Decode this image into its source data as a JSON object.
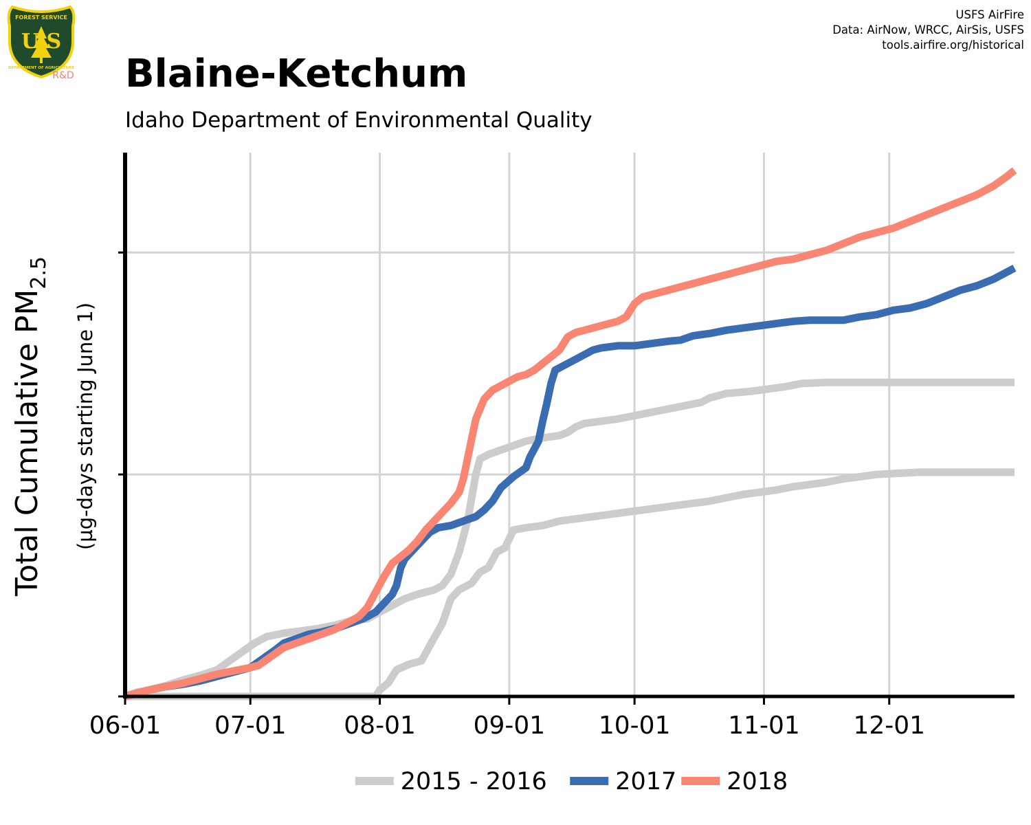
{
  "header": {
    "title": "Blaine-Ketchum",
    "subtitle": "Idaho Department of Environmental Quality",
    "credits": [
      "USFS AirFire",
      "Data: AirNow, WRCC, AirSis, USFS",
      "tools.airfire.org/historical"
    ],
    "logo": {
      "top_text": "FOREST SERVICE",
      "letters": "U S",
      "bottom_text": "DEPARTMENT OF AGRICULTURE",
      "badge": "R&D",
      "colors": {
        "shield": "#1f4a2c",
        "rim": "#f2d20c",
        "badge": "#f08070"
      }
    }
  },
  "chart_data": {
    "type": "line",
    "title": "Blaine-Ketchum",
    "subtitle": "Idaho Department of Environmental Quality",
    "ylabel": "Total Cumulative PM",
    "ylabel_subscript": "2.5",
    "ylabel_secondary": "(µg-days starting June 1)",
    "x_axis": {
      "type": "date",
      "range": [
        "06-01",
        "12-31"
      ],
      "ticks": [
        {
          "label": "06-01",
          "day": 0
        },
        {
          "label": "07-01",
          "day": 30
        },
        {
          "label": "08-01",
          "day": 61
        },
        {
          "label": "09-01",
          "day": 92
        },
        {
          "label": "10-01",
          "day": 122
        },
        {
          "label": "11-01",
          "day": 153
        },
        {
          "label": "12-01",
          "day": 183
        }
      ]
    },
    "y_axis": {
      "range": [
        0,
        2450
      ],
      "gridlines": [
        1000,
        2000
      ],
      "tick_labels_shown": false
    },
    "grid": true,
    "legend": {
      "placement": "bottom",
      "entries": [
        {
          "label": "2015 - 2016",
          "color": "#cccccc"
        },
        {
          "label": "2017",
          "color": "#3a6cb2"
        },
        {
          "label": "2018",
          "color": "#f98573"
        }
      ]
    },
    "series": [
      {
        "name": "2015 - 2016",
        "year": "2015",
        "color": "#cccccc",
        "points": [
          [
            0,
            0
          ],
          [
            30,
            0
          ],
          [
            60,
            0
          ],
          [
            61,
            30
          ],
          [
            63,
            60
          ],
          [
            65,
            120
          ],
          [
            68,
            145
          ],
          [
            71,
            160
          ],
          [
            73,
            230
          ],
          [
            76,
            330
          ],
          [
            78,
            440
          ],
          [
            80,
            480
          ],
          [
            83,
            510
          ],
          [
            85,
            560
          ],
          [
            87,
            580
          ],
          [
            89,
            650
          ],
          [
            91,
            670
          ],
          [
            93,
            750
          ],
          [
            96,
            760
          ],
          [
            100,
            770
          ],
          [
            104,
            790
          ],
          [
            108,
            800
          ],
          [
            112,
            810
          ],
          [
            116,
            820
          ],
          [
            120,
            830
          ],
          [
            124,
            840
          ],
          [
            128,
            850
          ],
          [
            132,
            860
          ],
          [
            136,
            870
          ],
          [
            140,
            880
          ],
          [
            144,
            895
          ],
          [
            148,
            910
          ],
          [
            152,
            920
          ],
          [
            156,
            930
          ],
          [
            160,
            945
          ],
          [
            164,
            955
          ],
          [
            168,
            965
          ],
          [
            172,
            980
          ],
          [
            176,
            990
          ],
          [
            180,
            1000
          ],
          [
            190,
            1010
          ],
          [
            213,
            1010
          ]
        ]
      },
      {
        "name": "2015 - 2016",
        "year": "2016",
        "color": "#cccccc",
        "points": [
          [
            0,
            0
          ],
          [
            3,
            20
          ],
          [
            6,
            30
          ],
          [
            10,
            50
          ],
          [
            14,
            75
          ],
          [
            18,
            95
          ],
          [
            22,
            120
          ],
          [
            25,
            160
          ],
          [
            28,
            200
          ],
          [
            31,
            240
          ],
          [
            34,
            270
          ],
          [
            38,
            285
          ],
          [
            42,
            295
          ],
          [
            46,
            305
          ],
          [
            50,
            320
          ],
          [
            54,
            340
          ],
          [
            58,
            350
          ],
          [
            61,
            380
          ],
          [
            64,
            410
          ],
          [
            67,
            440
          ],
          [
            70,
            460
          ],
          [
            74,
            480
          ],
          [
            76,
            500
          ],
          [
            78,
            550
          ],
          [
            80,
            650
          ],
          [
            82,
            790
          ],
          [
            84,
            1000
          ],
          [
            85,
            1070
          ],
          [
            87,
            1090
          ],
          [
            90,
            1110
          ],
          [
            93,
            1130
          ],
          [
            96,
            1150
          ],
          [
            100,
            1165
          ],
          [
            104,
            1175
          ],
          [
            106,
            1190
          ],
          [
            108,
            1215
          ],
          [
            110,
            1230
          ],
          [
            114,
            1240
          ],
          [
            118,
            1250
          ],
          [
            122,
            1265
          ],
          [
            126,
            1280
          ],
          [
            130,
            1295
          ],
          [
            134,
            1310
          ],
          [
            138,
            1325
          ],
          [
            140,
            1345
          ],
          [
            144,
            1365
          ],
          [
            150,
            1375
          ],
          [
            154,
            1385
          ],
          [
            158,
            1395
          ],
          [
            162,
            1410
          ],
          [
            168,
            1415
          ],
          [
            174,
            1415
          ],
          [
            213,
            1415
          ]
        ]
      },
      {
        "name": "2017",
        "year": "2017",
        "color": "#3a6cb2",
        "points": [
          [
            0,
            0
          ],
          [
            3,
            15
          ],
          [
            6,
            30
          ],
          [
            10,
            45
          ],
          [
            14,
            55
          ],
          [
            18,
            70
          ],
          [
            22,
            90
          ],
          [
            26,
            110
          ],
          [
            30,
            130
          ],
          [
            33,
            170
          ],
          [
            36,
            210
          ],
          [
            38,
            240
          ],
          [
            41,
            260
          ],
          [
            44,
            280
          ],
          [
            47,
            290
          ],
          [
            51,
            310
          ],
          [
            54,
            330
          ],
          [
            57,
            350
          ],
          [
            60,
            380
          ],
          [
            62,
            420
          ],
          [
            64,
            460
          ],
          [
            65,
            500
          ],
          [
            66,
            580
          ],
          [
            67,
            620
          ],
          [
            69,
            660
          ],
          [
            71,
            700
          ],
          [
            73,
            740
          ],
          [
            75,
            760
          ],
          [
            78,
            770
          ],
          [
            81,
            790
          ],
          [
            84,
            810
          ],
          [
            86,
            840
          ],
          [
            88,
            880
          ],
          [
            90,
            940
          ],
          [
            93,
            990
          ],
          [
            96,
            1030
          ],
          [
            97,
            1080
          ],
          [
            99,
            1150
          ],
          [
            100,
            1240
          ],
          [
            101,
            1320
          ],
          [
            102,
            1410
          ],
          [
            103,
            1470
          ],
          [
            106,
            1500
          ],
          [
            108,
            1520
          ],
          [
            110,
            1540
          ],
          [
            112,
            1560
          ],
          [
            114,
            1570
          ],
          [
            118,
            1580
          ],
          [
            122,
            1580
          ],
          [
            126,
            1590
          ],
          [
            130,
            1600
          ],
          [
            133,
            1605
          ],
          [
            136,
            1625
          ],
          [
            140,
            1635
          ],
          [
            144,
            1650
          ],
          [
            148,
            1660
          ],
          [
            152,
            1670
          ],
          [
            156,
            1680
          ],
          [
            160,
            1690
          ],
          [
            164,
            1695
          ],
          [
            168,
            1695
          ],
          [
            172,
            1695
          ],
          [
            176,
            1710
          ],
          [
            180,
            1720
          ],
          [
            184,
            1740
          ],
          [
            188,
            1750
          ],
          [
            192,
            1770
          ],
          [
            196,
            1800
          ],
          [
            200,
            1830
          ],
          [
            204,
            1850
          ],
          [
            208,
            1880
          ],
          [
            212,
            1920
          ],
          [
            213,
            1930
          ]
        ]
      },
      {
        "name": "2018",
        "year": "2018",
        "color": "#f98573",
        "points": [
          [
            0,
            0
          ],
          [
            3,
            15
          ],
          [
            6,
            30
          ],
          [
            10,
            45
          ],
          [
            14,
            60
          ],
          [
            18,
            80
          ],
          [
            22,
            100
          ],
          [
            26,
            115
          ],
          [
            30,
            130
          ],
          [
            32,
            140
          ],
          [
            35,
            180
          ],
          [
            38,
            220
          ],
          [
            41,
            240
          ],
          [
            44,
            260
          ],
          [
            47,
            280
          ],
          [
            50,
            300
          ],
          [
            53,
            330
          ],
          [
            56,
            360
          ],
          [
            58,
            400
          ],
          [
            60,
            470
          ],
          [
            62,
            540
          ],
          [
            64,
            600
          ],
          [
            66,
            630
          ],
          [
            68,
            660
          ],
          [
            70,
            700
          ],
          [
            72,
            750
          ],
          [
            74,
            790
          ],
          [
            76,
            830
          ],
          [
            78,
            870
          ],
          [
            80,
            920
          ],
          [
            81,
            980
          ],
          [
            82,
            1070
          ],
          [
            83,
            1160
          ],
          [
            84,
            1250
          ],
          [
            86,
            1340
          ],
          [
            88,
            1380
          ],
          [
            90,
            1400
          ],
          [
            92,
            1420
          ],
          [
            94,
            1440
          ],
          [
            96,
            1450
          ],
          [
            98,
            1470
          ],
          [
            100,
            1500
          ],
          [
            102,
            1530
          ],
          [
            104,
            1560
          ],
          [
            106,
            1620
          ],
          [
            108,
            1640
          ],
          [
            110,
            1650
          ],
          [
            112,
            1660
          ],
          [
            114,
            1670
          ],
          [
            116,
            1680
          ],
          [
            118,
            1690
          ],
          [
            120,
            1710
          ],
          [
            122,
            1770
          ],
          [
            124,
            1800
          ],
          [
            128,
            1820
          ],
          [
            132,
            1840
          ],
          [
            136,
            1860
          ],
          [
            140,
            1880
          ],
          [
            144,
            1900
          ],
          [
            148,
            1920
          ],
          [
            152,
            1940
          ],
          [
            156,
            1960
          ],
          [
            160,
            1970
          ],
          [
            164,
            1990
          ],
          [
            168,
            2010
          ],
          [
            172,
            2040
          ],
          [
            176,
            2070
          ],
          [
            180,
            2090
          ],
          [
            184,
            2110
          ],
          [
            188,
            2140
          ],
          [
            192,
            2170
          ],
          [
            196,
            2200
          ],
          [
            200,
            2230
          ],
          [
            204,
            2260
          ],
          [
            208,
            2300
          ],
          [
            211,
            2340
          ],
          [
            213,
            2370
          ]
        ]
      }
    ]
  }
}
